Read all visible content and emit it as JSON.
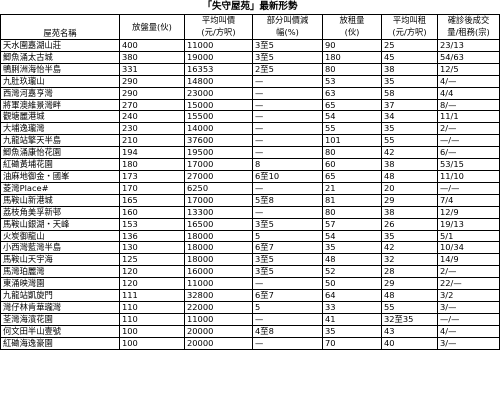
{
  "title": "「失守屋苑」最新形勢",
  "columns": {
    "name": "屋苑名稱",
    "listings": "放盤量(伙)",
    "avg_price_l1": "平均叫價",
    "avg_price_l2": "(元/方呎)",
    "cut_l1": "部分叫價減",
    "cut_l2": "幅(%)",
    "rentals": "放租量",
    "rentals_l2": "(伙)",
    "avg_rent_l1": "平均叫租",
    "avg_rent_l2": "(元/方呎)",
    "deals_l1": "確診後成交",
    "deals_l2": "量/租務(宗)"
  },
  "rows": [
    {
      "name": "天水圍嘉湖山莊",
      "listings": "400",
      "price": "11000",
      "cut": "3至5",
      "rentals": "90",
      "rent": "25",
      "deals": "23/13"
    },
    {
      "name": "鯽魚涌太古城",
      "listings": "380",
      "price": "19000",
      "cut": "3至5",
      "rentals": "180",
      "rent": "45",
      "deals": "54/63"
    },
    {
      "name": "鴨脷洲海怡半島",
      "listings": "331",
      "price": "16353",
      "cut": "2至5",
      "rentals": "80",
      "rent": "38",
      "deals": "12/5"
    },
    {
      "name": "九肚玖瓏山",
      "listings": "290",
      "price": "14800",
      "cut": "—",
      "rentals": "53",
      "rent": "35",
      "deals": "4/—"
    },
    {
      "name": "西灣河嘉亨灣",
      "listings": "290",
      "price": "23000",
      "cut": "—",
      "rentals": "63",
      "rent": "58",
      "deals": "4/4"
    },
    {
      "name": "將軍澳維景灣畔",
      "listings": "270",
      "price": "15000",
      "cut": "—",
      "rentals": "65",
      "rent": "37",
      "deals": "8/—"
    },
    {
      "name": "觀塘麗港城",
      "listings": "240",
      "price": "15500",
      "cut": "—",
      "rentals": "54",
      "rent": "34",
      "deals": "11/1"
    },
    {
      "name": "大埔逸瓏灣",
      "listings": "230",
      "price": "14000",
      "cut": "—",
      "rentals": "55",
      "rent": "35",
      "deals": "2/—"
    },
    {
      "name": "九龍站擎天半島",
      "listings": "210",
      "price": "37600",
      "cut": "—",
      "rentals": "101",
      "rent": "55",
      "deals": "—/—"
    },
    {
      "name": "鯽魚涌康怡花園",
      "listings": "194",
      "price": "19500",
      "cut": "—",
      "rentals": "80",
      "rent": "42",
      "deals": "6/—"
    },
    {
      "name": "紅磡黃埔花園",
      "listings": "180",
      "price": "17000",
      "cut": "8",
      "rentals": "60",
      "rent": "38",
      "deals": "53/15"
    },
    {
      "name": "油麻地御金・國峯",
      "listings": "173",
      "price": "27000",
      "cut": "6至10",
      "rentals": "65",
      "rent": "48",
      "deals": "11/10"
    },
    {
      "name": "菱灣Place#",
      "listings": "170",
      "price": "6250",
      "cut": "—",
      "rentals": "21",
      "rent": "20",
      "deals": "—/—"
    },
    {
      "name": "馬鞍山新港城",
      "listings": "165",
      "price": "17000",
      "cut": "5至8",
      "rentals": "81",
      "rent": "29",
      "deals": "7/4"
    },
    {
      "name": "荔枝角美孚新邨",
      "listings": "160",
      "price": "13300",
      "cut": "—",
      "rentals": "80",
      "rent": "38",
      "deals": "12/9"
    },
    {
      "name": "馬鞍山銀湖・天峰",
      "listings": "153",
      "price": "16500",
      "cut": "3至5",
      "rentals": "57",
      "rent": "26",
      "deals": "19/13"
    },
    {
      "name": "火炭御龍山",
      "listings": "136",
      "price": "18000",
      "cut": "5",
      "rentals": "54",
      "rent": "35",
      "deals": "5/1"
    },
    {
      "name": "小西灣藍灣半島",
      "listings": "130",
      "price": "18000",
      "cut": "6至7",
      "rentals": "35",
      "rent": "42",
      "deals": "10/34"
    },
    {
      "name": "馬鞍山天宇海",
      "listings": "125",
      "price": "18000",
      "cut": "3至5",
      "rentals": "48",
      "rent": "32",
      "deals": "14/9"
    },
    {
      "name": "馬灣珀麗灣",
      "listings": "120",
      "price": "16000",
      "cut": "3至5",
      "rentals": "52",
      "rent": "28",
      "deals": "2/—"
    },
    {
      "name": "東涌映灣園",
      "listings": "120",
      "price": "11000",
      "cut": "—",
      "rentals": "50",
      "rent": "29",
      "deals": "22/—"
    },
    {
      "name": "九龍站凱旋門",
      "listings": "111",
      "price": "32800",
      "cut": "6至7",
      "rentals": "64",
      "rent": "48",
      "deals": "3/2"
    },
    {
      "name": "灣仔林肯華瓏灣",
      "listings": "110",
      "price": "22000",
      "cut": "5",
      "rentals": "33",
      "rent": "55",
      "deals": "3/—"
    },
    {
      "name": "荃灣海濱花園",
      "listings": "110",
      "price": "11000",
      "cut": "—",
      "rentals": "41",
      "rent": "32至35",
      "deals": "—/—"
    },
    {
      "name": "何文田半山壹號",
      "listings": "100",
      "price": "20000",
      "cut": "4至8",
      "rentals": "35",
      "rent": "43",
      "deals": "4/—"
    },
    {
      "name": "紅磡海逸豪園",
      "listings": "100",
      "price": "20000",
      "cut": "—",
      "rentals": "70",
      "rent": "40",
      "deals": "3/—"
    }
  ]
}
